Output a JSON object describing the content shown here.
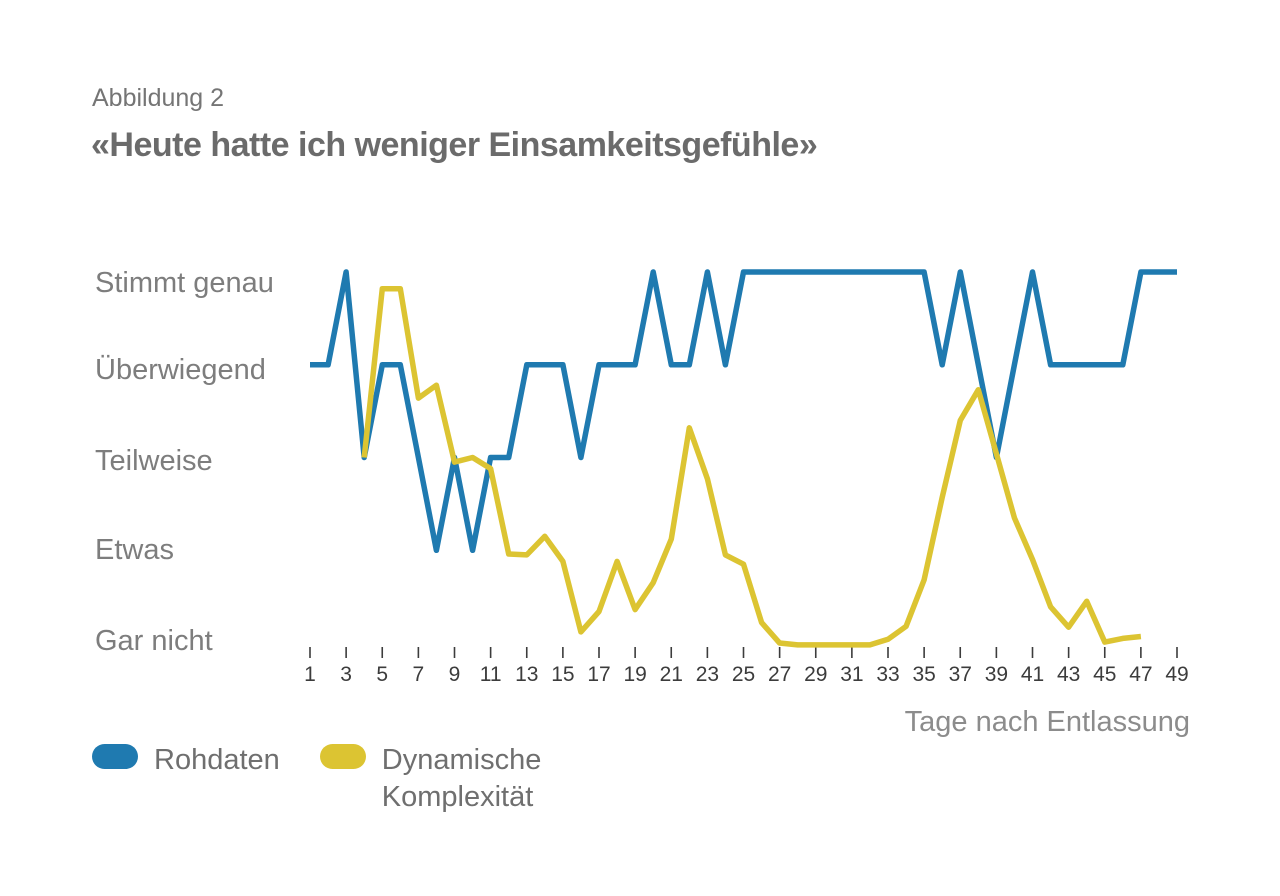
{
  "figure": {
    "label": "Abbildung 2",
    "title": "«Heute hatte ich weniger Einsamkeitsgefühle»"
  },
  "chart_data": {
    "type": "line",
    "title": "«Heute hatte ich weniger Einsamkeitsgefühle»",
    "xlabel": "Tage nach Entlassung",
    "ylabel": "",
    "xlim": [
      1,
      49
    ],
    "ylim": [
      1,
      5
    ],
    "grid": false,
    "legend_position": "bottom-left",
    "y_tick_labels": [
      "Stimmt genau",
      "Überwiegend",
      "Teilweise",
      "Etwas",
      "Gar nicht"
    ],
    "y_tick_values": [
      5,
      4,
      3,
      2,
      1
    ],
    "x_ticks": [
      1,
      3,
      5,
      7,
      9,
      11,
      13,
      15,
      17,
      19,
      21,
      23,
      25,
      27,
      29,
      31,
      33,
      35,
      37,
      39,
      41,
      43,
      45,
      47,
      49
    ],
    "series": [
      {
        "name": "Rohdaten",
        "key": "rohdaten",
        "color": "#1f7ab0",
        "x": [
          1,
          2,
          3,
          4,
          5,
          6,
          7,
          8,
          9,
          10,
          11,
          12,
          13,
          14,
          15,
          16,
          17,
          18,
          19,
          20,
          21,
          22,
          23,
          24,
          25,
          26,
          27,
          28,
          29,
          30,
          31,
          32,
          33,
          34,
          35,
          36,
          37,
          38,
          39,
          40,
          41,
          42,
          43,
          44,
          45,
          46,
          47,
          48,
          49
        ],
        "values": [
          4,
          4,
          5,
          3,
          4,
          4,
          3,
          2,
          3,
          2,
          3,
          3,
          4,
          4,
          4,
          3,
          4,
          4,
          4,
          5,
          4,
          4,
          5,
          4,
          5,
          5,
          5,
          5,
          5,
          5,
          5,
          5,
          5,
          5,
          5,
          4,
          5,
          4,
          3,
          4,
          5,
          4,
          4,
          4,
          4,
          4,
          5,
          5,
          5
        ]
      },
      {
        "name": "Dynamische Komplexität",
        "key": "dynamische-komplexitaet",
        "color": "#dcc432",
        "x": [
          4,
          5,
          6,
          7,
          8,
          9,
          10,
          11,
          12,
          13,
          14,
          15,
          16,
          17,
          18,
          19,
          20,
          21,
          22,
          23,
          24,
          25,
          26,
          27,
          28,
          29,
          30,
          31,
          32,
          33,
          34,
          35,
          36,
          37,
          38,
          39,
          40,
          41,
          42,
          43,
          44,
          45,
          46,
          47
        ],
        "values": [
          3.0,
          4.82,
          4.82,
          3.64,
          3.78,
          2.95,
          3.0,
          2.88,
          1.96,
          1.95,
          2.15,
          1.88,
          1.12,
          1.34,
          1.88,
          1.36,
          1.65,
          2.12,
          3.32,
          2.77,
          1.95,
          1.85,
          1.22,
          1.0,
          0.98,
          0.98,
          0.98,
          0.98,
          0.98,
          1.04,
          1.18,
          1.68,
          2.57,
          3.4,
          3.73,
          3.04,
          2.35,
          1.9,
          1.39,
          1.17,
          1.45,
          1.01,
          1.05,
          1.07
        ]
      }
    ]
  },
  "legend": {
    "items": [
      {
        "label": "Rohdaten",
        "color": "#1f7ab0"
      },
      {
        "label": "Dynamische Komplexität",
        "label_line1": "Dynamische",
        "label_line2": "Komplexität",
        "color": "#dcc432"
      }
    ]
  },
  "colors": {
    "rohdaten": "#1f7ab0",
    "dynamische_komplexitaet": "#dcc432",
    "axis_text": "#3c3c3c",
    "label_text": "#7d7d7d"
  }
}
